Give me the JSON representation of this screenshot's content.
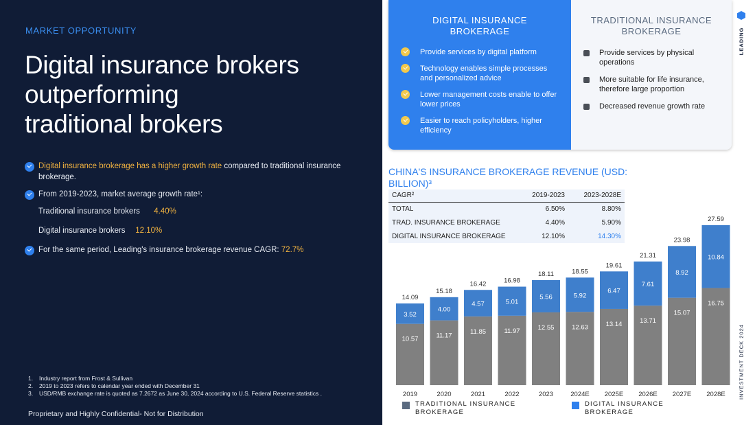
{
  "left": {
    "kicker": "MARKET OPPORTUNITY",
    "headline_lines": [
      "Digital insurance brokers",
      "outperforming",
      "traditional brokers"
    ],
    "point1_hl": "Digital insurance brokerage has a higher growth rate",
    "point1_rest": " compared to traditional insurance brokerage.",
    "point2": "From 2019-2023, market average growth rate¹:",
    "trad_label": "Traditional insurance brokers",
    "trad_value": "4.40%",
    "digital_label": "Digital insurance brokers",
    "digital_value": "12.10%",
    "point3": "For the same period, Leading's insurance brokerage revenue CAGR: ",
    "point3_value": "72.7%",
    "footnotes": [
      {
        "n": "1.",
        "text": "Industry report from Frost & Sullivan"
      },
      {
        "n": "2.",
        "text": "2019 to 2023 refers to calendar year ended with December 31"
      },
      {
        "n": "3.",
        "text": "USD/RMB exchange rate is quoted as 7.2672 as June 30, 2024 according to U.S. Federal Reserve statistics ."
      }
    ],
    "confidential": "Proprietary and Highly Confidential- Not for Distribution"
  },
  "card": {
    "digital_title": "DIGITAL INSURANCE BROKERAGE",
    "digital_items": [
      "Provide services by digital platform",
      "Technology enables simple processes and personalized advice",
      "Lower management costs enable to offer lower prices",
      "Easier to reach policyholders, higher efficiency"
    ],
    "traditional_title": "TRADITIONAL INSURANCE BROKERAGE",
    "traditional_items": [
      "Provide services by physical operations",
      "More suitable for life insurance, therefore large proportion",
      "Decreased revenue growth rate"
    ]
  },
  "rail": {
    "brand": "LEADING",
    "deck": "INVESTMENT DECK 2024"
  },
  "cagr_table": {
    "header": [
      "CAGR²",
      "2019-2023",
      "2023-2028E"
    ],
    "rows": [
      [
        "TOTAL",
        "6.50%",
        "8.80%"
      ],
      [
        "TRAD. INSURANCE BROKERAGE",
        "4.40%",
        "5.90%"
      ],
      [
        "DIGITAL INSURANCE BROKERAGE",
        "12.10%",
        "14.30%"
      ]
    ]
  },
  "chart_data": {
    "type": "bar",
    "stacked": true,
    "title": "CHINA'S INSURANCE BROKERAGE REVENUE (USD: BILLION)³",
    "categories": [
      "2019",
      "2020",
      "2021",
      "2022",
      "2023",
      "2024E",
      "2025E",
      "2026E",
      "2027E",
      "2028E"
    ],
    "series": [
      {
        "name": "TRADITIONAL INSURANCE BROKERAGE",
        "color": "#808080",
        "values": [
          10.57,
          11.17,
          11.85,
          11.97,
          12.55,
          12.63,
          13.14,
          13.71,
          15.07,
          16.75
        ]
      },
      {
        "name": "DIGITAL INSURANCE BROKERAGE",
        "color": "#3f7fcc",
        "values": [
          3.52,
          4.0,
          4.57,
          5.01,
          5.56,
          5.92,
          6.47,
          7.61,
          8.92,
          10.84
        ]
      }
    ],
    "totals": [
      14.09,
      15.18,
      16.42,
      16.98,
      18.11,
      18.55,
      19.61,
      21.31,
      23.98,
      27.59
    ],
    "legend_colors": [
      "#5b6b80",
      "#2f80ed"
    ],
    "ylim": [
      0,
      30
    ],
    "grid": false,
    "legend": "bottom"
  }
}
